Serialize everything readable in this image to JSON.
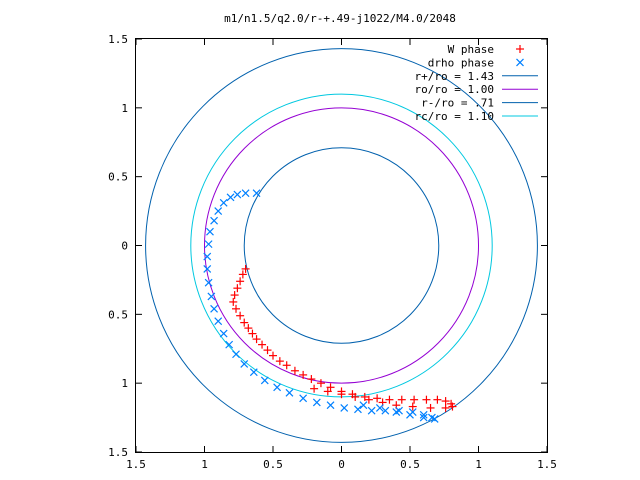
{
  "chart_data": {
    "type": "scatter",
    "title": "m1/n1.5/q2.0/r-+.49-j1022/M4.0/2048",
    "xlabel": "",
    "ylabel": "",
    "xlim": [
      -1.5,
      1.5
    ],
    "ylim": [
      -1.5,
      1.5
    ],
    "grid": false,
    "legend_position": "top-right",
    "x_ticks": [
      -1.5,
      -1,
      -0.5,
      0,
      0.5,
      1,
      1.5
    ],
    "x_tick_labels": [
      "1.5",
      "1",
      "0.5",
      "0",
      "0.5",
      "1",
      "1.5"
    ],
    "y_ticks": [
      1.5,
      1,
      0.5,
      0,
      -0.5,
      -1,
      -1.5
    ],
    "y_tick_labels": [
      "1.5",
      "1",
      "0.5",
      "0",
      "0.5",
      "1",
      "1.5"
    ],
    "series": [
      {
        "name": "W phase",
        "marker": "plus",
        "color": "#ff0000",
        "points": [
          [
            -0.7,
            -0.17
          ],
          [
            -0.72,
            -0.21
          ],
          [
            -0.74,
            -0.26
          ],
          [
            -0.76,
            -0.31
          ],
          [
            -0.78,
            -0.36
          ],
          [
            -0.79,
            -0.41
          ],
          [
            -0.77,
            -0.46
          ],
          [
            -0.74,
            -0.51
          ],
          [
            -0.71,
            -0.56
          ],
          [
            -0.68,
            -0.6
          ],
          [
            -0.65,
            -0.64
          ],
          [
            -0.62,
            -0.68
          ],
          [
            -0.58,
            -0.72
          ],
          [
            -0.54,
            -0.76
          ],
          [
            -0.5,
            -0.8
          ],
          [
            -0.45,
            -0.84
          ],
          [
            -0.4,
            -0.87
          ],
          [
            -0.34,
            -0.91
          ],
          [
            -0.28,
            -0.94
          ],
          [
            -0.22,
            -0.97
          ],
          [
            -0.15,
            -1.0
          ],
          [
            -0.08,
            -1.03
          ],
          [
            0.0,
            -1.06
          ],
          [
            0.08,
            -1.08
          ],
          [
            0.17,
            -1.1
          ],
          [
            0.26,
            -1.11
          ],
          [
            0.35,
            -1.12
          ],
          [
            0.44,
            -1.12
          ],
          [
            0.53,
            -1.12
          ],
          [
            0.62,
            -1.12
          ],
          [
            0.7,
            -1.12
          ],
          [
            0.76,
            -1.13
          ],
          [
            0.8,
            -1.15
          ],
          [
            0.81,
            -1.17
          ],
          [
            0.76,
            -1.18
          ],
          [
            0.65,
            -1.18
          ],
          [
            0.52,
            -1.17
          ],
          [
            0.4,
            -1.16
          ],
          [
            0.3,
            -1.14
          ],
          [
            0.2,
            -1.12
          ],
          [
            0.1,
            -1.1
          ],
          [
            0.0,
            -1.08
          ],
          [
            -0.1,
            -1.06
          ],
          [
            -0.2,
            -1.04
          ]
        ]
      },
      {
        "name": "drho phase",
        "marker": "cross",
        "color": "#0080ff",
        "points": [
          [
            -0.62,
            0.38
          ],
          [
            -0.7,
            0.38
          ],
          [
            -0.76,
            0.37
          ],
          [
            -0.81,
            0.35
          ],
          [
            -0.86,
            0.31
          ],
          [
            -0.9,
            0.25
          ],
          [
            -0.93,
            0.18
          ],
          [
            -0.96,
            0.1
          ],
          [
            -0.97,
            0.01
          ],
          [
            -0.98,
            -0.08
          ],
          [
            -0.98,
            -0.17
          ],
          [
            -0.97,
            -0.27
          ],
          [
            -0.95,
            -0.37
          ],
          [
            -0.93,
            -0.46
          ],
          [
            -0.9,
            -0.55
          ],
          [
            -0.86,
            -0.64
          ],
          [
            -0.82,
            -0.72
          ],
          [
            -0.77,
            -0.79
          ],
          [
            -0.71,
            -0.86
          ],
          [
            -0.64,
            -0.92
          ],
          [
            -0.56,
            -0.98
          ],
          [
            -0.47,
            -1.03
          ],
          [
            -0.38,
            -1.07
          ],
          [
            -0.28,
            -1.11
          ],
          [
            -0.18,
            -1.14
          ],
          [
            -0.08,
            -1.16
          ],
          [
            0.02,
            -1.18
          ],
          [
            0.12,
            -1.19
          ],
          [
            0.22,
            -1.2
          ],
          [
            0.32,
            -1.2
          ],
          [
            0.42,
            -1.2
          ],
          [
            0.52,
            -1.21
          ],
          [
            0.6,
            -1.23
          ],
          [
            0.66,
            -1.25
          ],
          [
            0.68,
            -1.26
          ],
          [
            0.6,
            -1.25
          ],
          [
            0.5,
            -1.23
          ],
          [
            0.4,
            -1.21
          ],
          [
            0.28,
            -1.18
          ],
          [
            0.16,
            -1.16
          ]
        ]
      },
      {
        "name": "r+/ro = 1.43",
        "type": "circle",
        "radius": 1.43,
        "color": "#0060ad"
      },
      {
        "name": "ro/ro = 1.00",
        "type": "circle",
        "radius": 1.0,
        "color": "#9400d3"
      },
      {
        "name": "r-/ro = .71",
        "type": "circle",
        "radius": 0.71,
        "color": "#0060ad"
      },
      {
        "name": "rc/ro = 1.10",
        "type": "circle",
        "radius": 1.1,
        "color": "#00c8e0"
      }
    ]
  }
}
